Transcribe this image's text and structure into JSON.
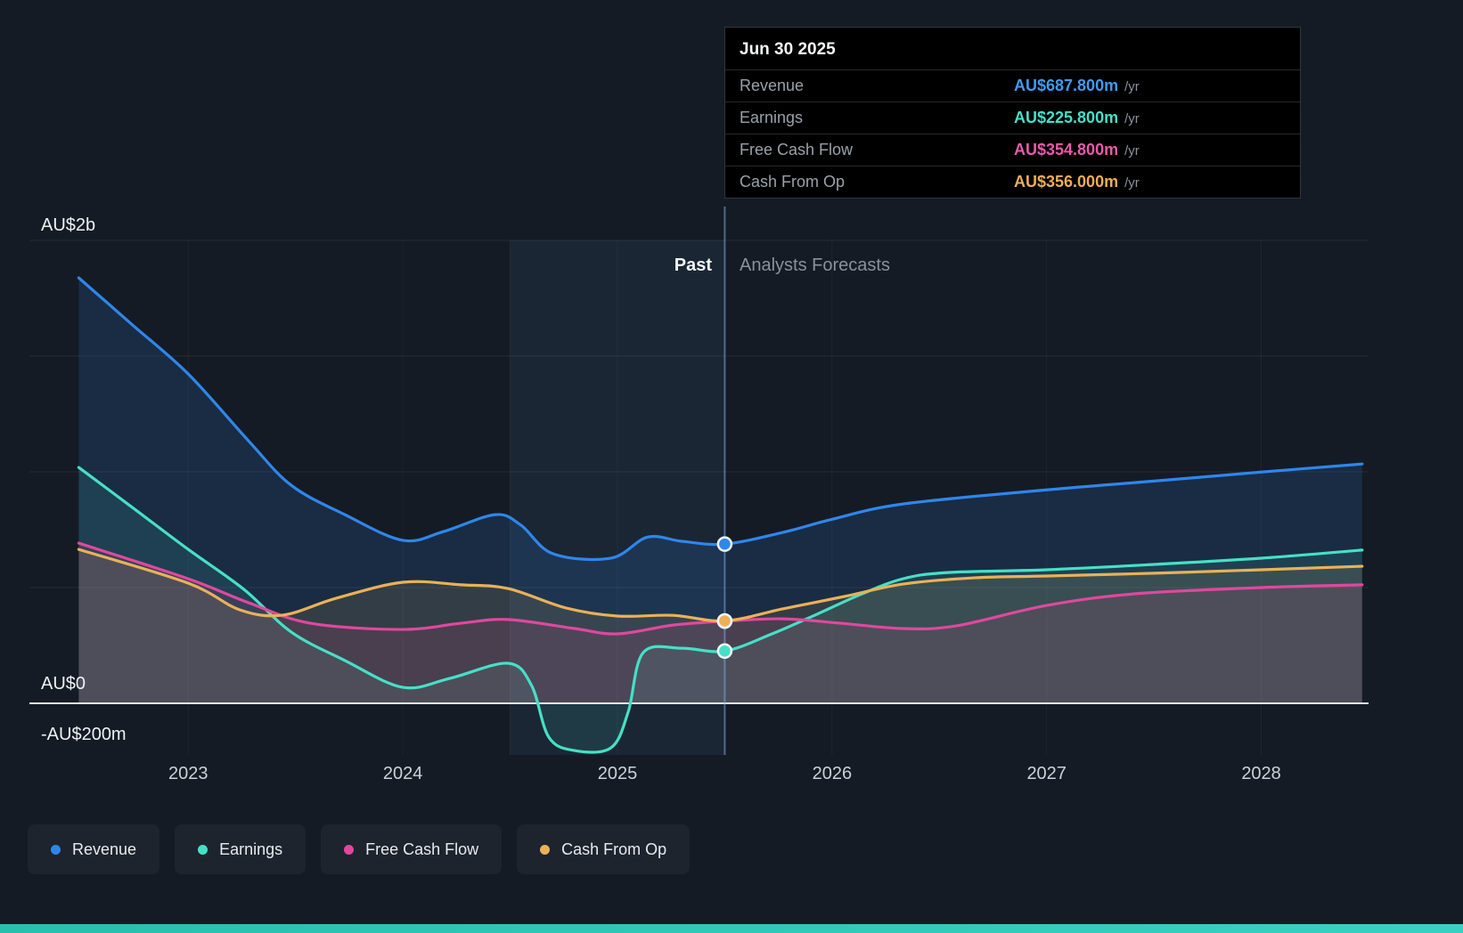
{
  "tooltip": {
    "date": "Jun 30 2025",
    "rows": [
      {
        "label": "Revenue",
        "value": "AU$687.800m",
        "suffix": "/yr",
        "color": "#3f9bf4"
      },
      {
        "label": "Earnings",
        "value": "AU$225.800m",
        "suffix": "/yr",
        "color": "#43e0c8"
      },
      {
        "label": "Free Cash Flow",
        "value": "AU$354.800m",
        "suffix": "/yr",
        "color": "#ea5aaa"
      },
      {
        "label": "Cash From Op",
        "value": "AU$356.000m",
        "suffix": "/yr",
        "color": "#edae52"
      }
    ]
  },
  "region_labels": {
    "past": "Past",
    "forecast": "Analysts Forecasts"
  },
  "y_axis_labels": [
    "AU$2b",
    "AU$0",
    "-AU$200m"
  ],
  "legend": [
    {
      "label": "Revenue",
      "color": "#2f86eb"
    },
    {
      "label": "Earnings",
      "color": "#46e0c6"
    },
    {
      "label": "Free Cash Flow",
      "color": "#e0489e"
    },
    {
      "label": "Cash From Op",
      "color": "#eab157"
    }
  ],
  "chart_data": {
    "type": "line",
    "unit": "AU$ millions per year",
    "x_range": [
      2022.26,
      2028.5
    ],
    "x_ticks": [
      {
        "label": "2023",
        "year": 2023
      },
      {
        "label": "2024",
        "year": 2024
      },
      {
        "label": "2025",
        "year": 2025
      },
      {
        "label": "2026",
        "year": 2026
      },
      {
        "label": "2027",
        "year": 2027
      },
      {
        "label": "2028",
        "year": 2028
      }
    ],
    "y_top": {
      "label": "AU$2b",
      "value": 2000
    },
    "y_zero": {
      "label": "AU$0",
      "value": 0
    },
    "y_bottom": {
      "label": "-AU$200m",
      "value": -200
    },
    "y_gridline_values": [
      2000,
      1500,
      1000,
      500
    ],
    "highlight_band_years": [
      2024.5,
      2025.5
    ],
    "divider_year": 2025.5,
    "divider_date": "Jun 30 2025",
    "series": [
      {
        "name": "Revenue",
        "color": "#2f86eb",
        "points": [
          [
            2022.49,
            1838
          ],
          [
            2022.74,
            1635
          ],
          [
            2023.0,
            1423
          ],
          [
            2023.28,
            1135
          ],
          [
            2023.48,
            942
          ],
          [
            2023.73,
            815
          ],
          [
            2024.0,
            704
          ],
          [
            2024.19,
            742
          ],
          [
            2024.43,
            815
          ],
          [
            2024.55,
            770
          ],
          [
            2024.7,
            646
          ],
          [
            2024.97,
            627
          ],
          [
            2025.14,
            718
          ],
          [
            2025.3,
            700
          ],
          [
            2025.5,
            687.8
          ],
          [
            2025.77,
            738
          ],
          [
            2026.0,
            795
          ],
          [
            2026.33,
            861
          ],
          [
            2027.0,
            922
          ],
          [
            2027.5,
            960
          ],
          [
            2028.0,
            999
          ],
          [
            2028.47,
            1034
          ]
        ]
      },
      {
        "name": "Earnings",
        "color": "#46e0c6",
        "points": [
          [
            2022.49,
            1019
          ],
          [
            2022.74,
            846
          ],
          [
            2023.0,
            665
          ],
          [
            2023.26,
            492
          ],
          [
            2023.48,
            308
          ],
          [
            2023.73,
            185
          ],
          [
            2024.0,
            69
          ],
          [
            2024.22,
            108
          ],
          [
            2024.49,
            173
          ],
          [
            2024.6,
            77
          ],
          [
            2024.68,
            -146
          ],
          [
            2024.8,
            -204
          ],
          [
            2024.97,
            -192
          ],
          [
            2025.05,
            -38
          ],
          [
            2025.12,
            219
          ],
          [
            2025.3,
            238
          ],
          [
            2025.5,
            225.8
          ],
          [
            2025.72,
            300
          ],
          [
            2025.93,
            385
          ],
          [
            2026.13,
            469
          ],
          [
            2026.33,
            538
          ],
          [
            2026.54,
            565
          ],
          [
            2027.0,
            577
          ],
          [
            2027.5,
            600
          ],
          [
            2028.0,
            627
          ],
          [
            2028.47,
            662
          ]
        ]
      },
      {
        "name": "Free Cash Flow",
        "color": "#e0489e",
        "points": [
          [
            2022.49,
            692
          ],
          [
            2023.0,
            538
          ],
          [
            2023.28,
            435
          ],
          [
            2023.57,
            346
          ],
          [
            2024.0,
            319
          ],
          [
            2024.27,
            346
          ],
          [
            2024.49,
            362
          ],
          [
            2024.8,
            323
          ],
          [
            2025.0,
            300
          ],
          [
            2025.26,
            338
          ],
          [
            2025.5,
            354.8
          ],
          [
            2025.77,
            365
          ],
          [
            2026.04,
            346
          ],
          [
            2026.33,
            323
          ],
          [
            2026.58,
            335
          ],
          [
            2027.0,
            423
          ],
          [
            2027.41,
            473
          ],
          [
            2028.0,
            500
          ],
          [
            2028.47,
            512
          ]
        ]
      },
      {
        "name": "Cash From Op",
        "color": "#eab157",
        "points": [
          [
            2022.49,
            665
          ],
          [
            2023.0,
            519
          ],
          [
            2023.24,
            404
          ],
          [
            2023.44,
            381
          ],
          [
            2023.69,
            454
          ],
          [
            2024.0,
            523
          ],
          [
            2024.27,
            512
          ],
          [
            2024.49,
            496
          ],
          [
            2024.76,
            412
          ],
          [
            2025.0,
            377
          ],
          [
            2025.26,
            380
          ],
          [
            2025.5,
            356
          ],
          [
            2025.77,
            408
          ],
          [
            2026.06,
            462
          ],
          [
            2026.33,
            515
          ],
          [
            2026.66,
            542
          ],
          [
            2027.0,
            550
          ],
          [
            2027.5,
            562
          ],
          [
            2028.0,
            577
          ],
          [
            2028.47,
            592
          ]
        ]
      }
    ],
    "markers": [
      {
        "series": "Revenue",
        "year": 2025.5,
        "value": 687.8,
        "color": "#2f86eb"
      },
      {
        "series": "Free Cash Flow",
        "year": 2025.5,
        "value": 354.8,
        "color": "#e0489e"
      },
      {
        "series": "Cash From Op",
        "year": 2025.5,
        "value": 356.0,
        "color": "#eab157"
      },
      {
        "series": "Earnings",
        "year": 2025.5,
        "value": 225.8,
        "color": "#46e0c6"
      }
    ]
  }
}
